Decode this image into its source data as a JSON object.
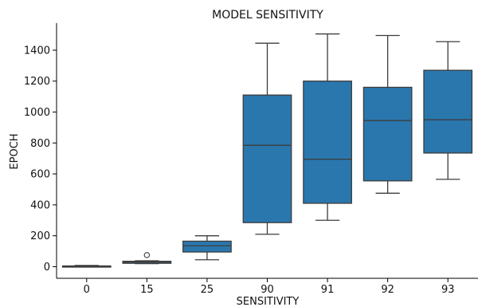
{
  "chart_data": {
    "type": "box",
    "title": "MODEL SENSITIVITY",
    "xlabel": "SENSITIVITY",
    "ylabel": "EPOCH",
    "categories": [
      "0",
      "15",
      "25",
      "90",
      "91",
      "92",
      "93"
    ],
    "y_ticks": [
      0,
      200,
      400,
      600,
      800,
      1000,
      1200,
      1400
    ],
    "y_tick_labels": [
      "0",
      "200",
      "400",
      "600",
      "800",
      "1000",
      "1200",
      "1400"
    ],
    "ylim": [
      -75,
      1575
    ],
    "grid": false,
    "color": "#2a77ae",
    "line_color": "#3d3d3d",
    "boxes": [
      {
        "category": "0",
        "whisker_low": 0,
        "q1": 0,
        "median": 2,
        "q3": 5,
        "whisker_high": 8,
        "outliers": []
      },
      {
        "category": "15",
        "whisker_low": 20,
        "q1": 22,
        "median": 30,
        "q3": 35,
        "whisker_high": 38,
        "outliers": [
          75
        ]
      },
      {
        "category": "25",
        "whisker_low": 45,
        "q1": 95,
        "median": 135,
        "q3": 165,
        "whisker_high": 200,
        "outliers": []
      },
      {
        "category": "90",
        "whisker_low": 210,
        "q1": 285,
        "median": 785,
        "q3": 1110,
        "whisker_high": 1445,
        "outliers": []
      },
      {
        "category": "91",
        "whisker_low": 300,
        "q1": 410,
        "median": 695,
        "q3": 1200,
        "whisker_high": 1505,
        "outliers": []
      },
      {
        "category": "92",
        "whisker_low": 475,
        "q1": 555,
        "median": 945,
        "q3": 1160,
        "whisker_high": 1495,
        "outliers": []
      },
      {
        "category": "93",
        "whisker_low": 565,
        "q1": 735,
        "median": 950,
        "q3": 1270,
        "whisker_high": 1455,
        "outliers": []
      }
    ]
  }
}
